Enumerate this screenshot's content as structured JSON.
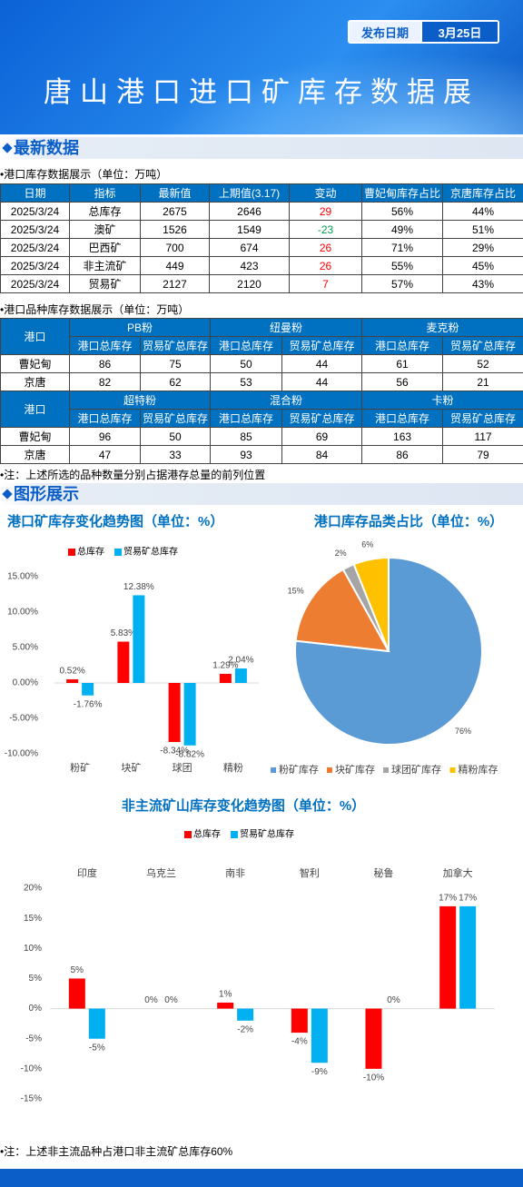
{
  "header": {
    "date_label": "发布日期",
    "date": "3月25日",
    "title": "唐山港口进口矿库存数据展"
  },
  "section1": "最新数据",
  "table1": {
    "caption": "•港口库存数据展示（单位：万吨）",
    "columns": [
      "日期",
      "指标",
      "最新值",
      "上期值(3.17)",
      "变动",
      "曹妃甸库存占比",
      "京唐库存占比"
    ],
    "rows": [
      [
        "2025/3/24",
        "总库存",
        2675,
        2646,
        29,
        "56%",
        "44%"
      ],
      [
        "2025/3/24",
        "澳矿",
        1526,
        1549,
        -23,
        "49%",
        "51%"
      ],
      [
        "2025/3/24",
        "巴西矿",
        700,
        674,
        26,
        "71%",
        "29%"
      ],
      [
        "2025/3/24",
        "非主流矿",
        449,
        423,
        26,
        "55%",
        "45%"
      ],
      [
        "2025/3/24",
        "贸易矿",
        2127,
        2120,
        7,
        "57%",
        "43%"
      ]
    ]
  },
  "table2": {
    "caption": "•港口品种库存数据展示（单位：万吨）",
    "port_header": "港口",
    "blocks": [
      {
        "products": [
          "PB粉",
          "纽曼粉",
          "麦克粉"
        ],
        "columns": [
          "港口总库存",
          "贸易矿总库存",
          "港口总库存",
          "贸易矿总库存",
          "港口总库存",
          "贸易矿总库存"
        ],
        "rows": [
          {
            "port": "曹妃甸",
            "values": [
              86,
              75,
              50,
              44,
              61,
              52
            ]
          },
          {
            "port": "京唐",
            "values": [
              82,
              62,
              53,
              44,
              56,
              21
            ]
          }
        ]
      },
      {
        "products": [
          "超特粉",
          "混合粉",
          "卡粉"
        ],
        "columns": [
          "港口总库存",
          "贸易矿总库存",
          "港口总库存",
          "贸易矿总库存",
          "港口总库存",
          "贸易矿总库存"
        ],
        "rows": [
          {
            "port": "曹妃甸",
            "values": [
              96,
              50,
              85,
              69,
              163,
              117
            ]
          },
          {
            "port": "京唐",
            "values": [
              47,
              33,
              93,
              84,
              86,
              79
            ]
          }
        ]
      }
    ]
  },
  "note1": "•注：上述所选的品种数量分别占据港存总量的前列位置",
  "section2": "图形展示",
  "chart_data": [
    {
      "type": "bar",
      "title": "港口矿库存变化趋势图（单位：%）",
      "categories": [
        "粉矿",
        "块矿",
        "球团",
        "精粉"
      ],
      "series": [
        {
          "name": "总库存",
          "color": "#ff0000",
          "values": [
            0.52,
            5.83,
            -8.34,
            1.29
          ],
          "value_labels": [
            "0.52%",
            "5.83%",
            "-8.34%",
            "1.29%"
          ]
        },
        {
          "name": "贸易矿总库存",
          "color": "#00b0f0",
          "values": [
            -1.76,
            12.38,
            -8.82,
            2.04
          ],
          "value_labels": [
            "-1.76%",
            "12.38%",
            "-8.82%",
            "2.04%"
          ]
        }
      ],
      "ylim": [
        -10,
        15
      ],
      "yticks": [
        {
          "value": -10,
          "label": "-10.00%"
        },
        {
          "value": -5,
          "label": "-5.00%"
        },
        {
          "value": 0,
          "label": "0.00%"
        },
        {
          "value": 5,
          "label": "5.00%"
        },
        {
          "value": 10,
          "label": "10.00%"
        },
        {
          "value": 15,
          "label": "15.00%"
        }
      ],
      "grid": false
    },
    {
      "type": "pie",
      "title": "港口库存品类占比（单位：%）",
      "categories": [
        "粉矿库存",
        "块矿库存",
        "球团矿库存",
        "精粉库存"
      ],
      "values": [
        76,
        15,
        2,
        6
      ],
      "value_labels": [
        "76%",
        "15%",
        "2%",
        "6%"
      ],
      "colors": [
        "#5b9bd5",
        "#ed7d31",
        "#a5a5a5",
        "#ffc000"
      ]
    },
    {
      "type": "bar",
      "title": "非主流矿山库存变化趋势图（单位：%）",
      "categories": [
        "印度",
        "乌克兰",
        "南非",
        "智利",
        "秘鲁",
        "加拿大"
      ],
      "series": [
        {
          "name": "总库存",
          "color": "#ff0000",
          "values": [
            5,
            0,
            1,
            -4,
            -10,
            17
          ],
          "value_labels": [
            "5%",
            "0%",
            "1%",
            "-4%",
            "-10%",
            "17%"
          ]
        },
        {
          "name": "贸易矿总库存",
          "color": "#00b0f0",
          "values": [
            -5,
            0,
            -2,
            -9,
            0,
            17
          ],
          "value_labels": [
            "-5%",
            "0%",
            "-2%",
            "-9%",
            "0%",
            "17%"
          ]
        }
      ],
      "ylim": [
        -15,
        20
      ],
      "yticks": [
        {
          "value": -15,
          "label": "-15%"
        },
        {
          "value": -10,
          "label": "-10%"
        },
        {
          "value": -5,
          "label": "-5%"
        },
        {
          "value": 0,
          "label": "0%"
        },
        {
          "value": 5,
          "label": "5%"
        },
        {
          "value": 10,
          "label": "10%"
        },
        {
          "value": 15,
          "label": "15%"
        },
        {
          "value": 20,
          "label": "20%"
        }
      ],
      "grid": false
    }
  ],
  "note2": "•注：上述非主流品种占港口非主流矿总库存60%"
}
